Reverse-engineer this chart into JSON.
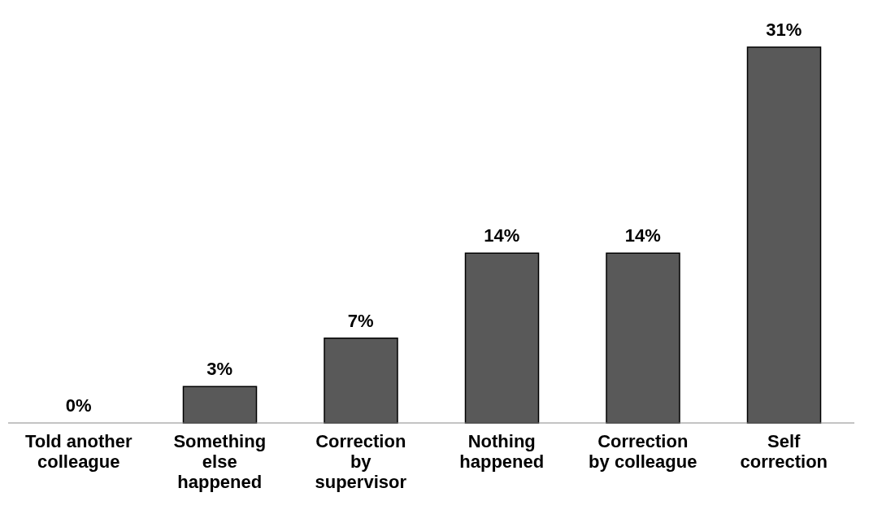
{
  "chart_data": {
    "type": "bar",
    "categories": [
      "Told another colleague",
      "Something else happened",
      "Correction by supervisor",
      "Nothing happened",
      "Correction by colleague",
      "Self correction"
    ],
    "values": [
      0,
      3,
      7,
      14,
      14,
      31
    ],
    "value_labels": [
      "0%",
      "3%",
      "7%",
      "14%",
      "14%",
      "31%"
    ],
    "color": "#595959",
    "grid": false,
    "legend": false
  }
}
